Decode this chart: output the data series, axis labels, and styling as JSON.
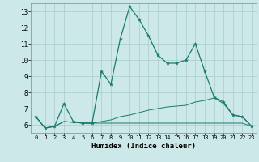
{
  "xlabel": "Humidex (Indice chaleur)",
  "background_color": "#cce8e8",
  "grid_color": "#aacccc",
  "line_color": "#1a7a6e",
  "x_values": [
    0,
    1,
    2,
    3,
    4,
    5,
    6,
    7,
    8,
    9,
    10,
    11,
    12,
    13,
    14,
    15,
    16,
    17,
    18,
    19,
    20,
    21,
    22,
    23
  ],
  "line1_y": [
    6.5,
    5.8,
    5.9,
    7.3,
    6.2,
    6.1,
    6.1,
    9.3,
    8.5,
    11.3,
    13.3,
    12.5,
    11.5,
    10.3,
    9.8,
    9.8,
    10.0,
    11.0,
    9.3,
    7.7,
    7.4,
    6.6,
    6.5,
    5.9
  ],
  "line2_y": [
    6.5,
    5.8,
    5.9,
    6.2,
    6.15,
    6.1,
    6.1,
    6.2,
    6.3,
    6.5,
    6.6,
    6.75,
    6.9,
    7.0,
    7.1,
    7.15,
    7.2,
    7.4,
    7.5,
    7.65,
    7.3,
    6.6,
    6.5,
    5.9
  ],
  "line3_y": [
    6.5,
    5.8,
    5.9,
    6.2,
    6.15,
    6.1,
    6.1,
    6.1,
    6.1,
    6.1,
    6.1,
    6.1,
    6.1,
    6.1,
    6.1,
    6.1,
    6.1,
    6.1,
    6.1,
    6.1,
    6.1,
    6.1,
    6.1,
    5.9
  ],
  "ylim": [
    5.5,
    13.5
  ],
  "xlim": [
    -0.5,
    23.5
  ],
  "yticks": [
    6,
    7,
    8,
    9,
    10,
    11,
    12,
    13
  ],
  "xtick_labels": [
    "0",
    "1",
    "2",
    "3",
    "4",
    "5",
    "6",
    "7",
    "8",
    "9",
    "10",
    "11",
    "12",
    "13",
    "14",
    "15",
    "16",
    "17",
    "18",
    "19",
    "20",
    "21",
    "22",
    "23"
  ]
}
